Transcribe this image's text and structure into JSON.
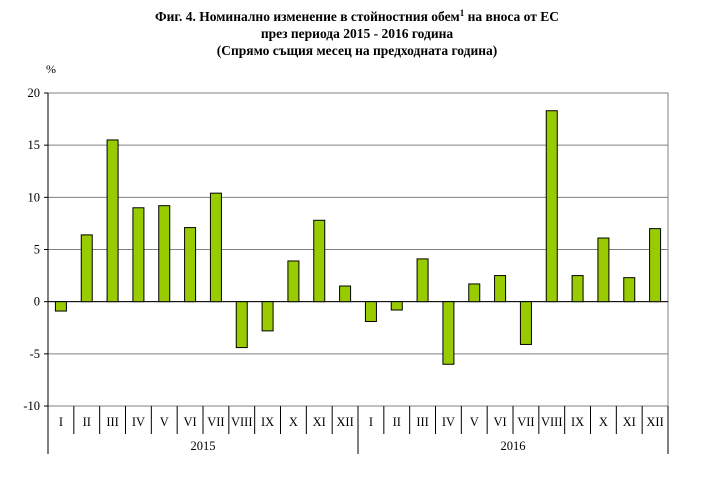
{
  "title": {
    "line1_main": "Фиг. 4. Номинално изменение  в стойностния обем",
    "line1_sup": "1",
    "line1_end": " на вноса от ЕС",
    "line2": "през периода 2015 - 2016 година",
    "line3": "(Спрямо същия месец на предходната година)"
  },
  "chart_data": {
    "type": "bar",
    "title": "Фиг. 4. Номинално изменение в стойностния обем на вноса от ЕС през периода 2015 - 2016 година (Спрямо същия месец на предходната година)",
    "ylabel": "%",
    "xlabel": "",
    "ylim": [
      -10,
      20
    ],
    "yticks": [
      20,
      15,
      10,
      5,
      0,
      -5,
      -10
    ],
    "grid": true,
    "legend": "none",
    "bar_color": "#99cc00",
    "groups": [
      "2015",
      "2016"
    ],
    "categories": [
      "I",
      "II",
      "III",
      "IV",
      "V",
      "VI",
      "VII",
      "VIII",
      "IX",
      "X",
      "XI",
      "XII",
      "I",
      "II",
      "III",
      "IV",
      "V",
      "VI",
      "VII",
      "VIII",
      "IX",
      "X",
      "XI",
      "XII"
    ],
    "values": [
      -0.9,
      6.4,
      15.5,
      9.0,
      9.2,
      7.1,
      10.4,
      -4.4,
      -2.8,
      3.9,
      7.8,
      1.5,
      -1.9,
      -0.8,
      4.1,
      -6.0,
      1.7,
      2.5,
      -4.1,
      18.3,
      2.5,
      6.1,
      2.3,
      7.0
    ]
  }
}
